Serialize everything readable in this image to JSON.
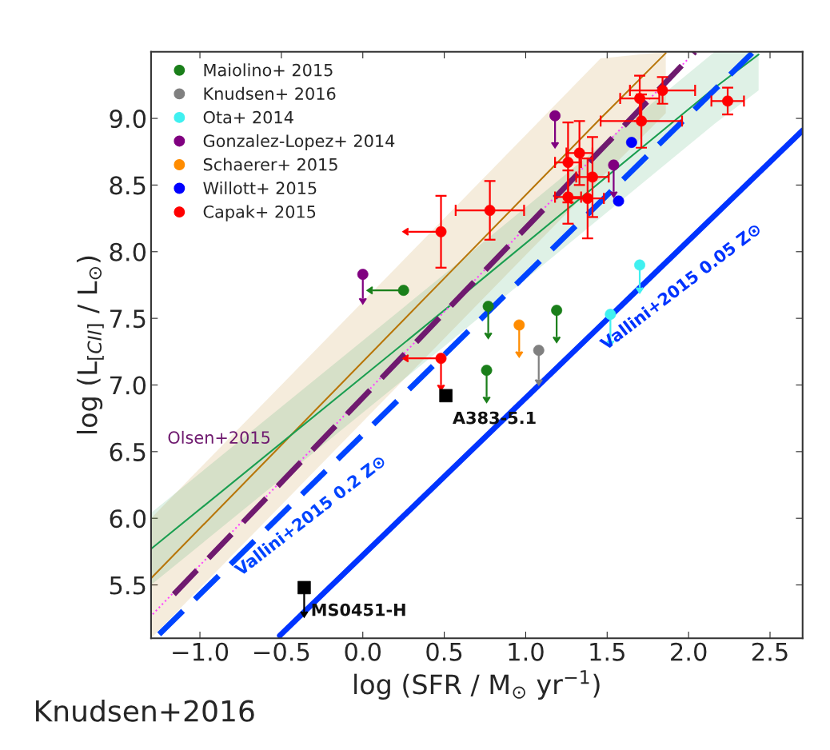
{
  "chart_data": {
    "type": "scatter",
    "xlabel": "log (SFR / M$_{⊙}$ yr$^{−1}$)",
    "ylabel": "log (L$_{[CII]}$ / L$_{⊙}$)",
    "xlim": [
      -1.3,
      2.7
    ],
    "ylim": [
      5.1,
      9.5
    ],
    "xticks": [
      {
        "value": -1.0,
        "label": "−1.0"
      },
      {
        "value": -0.5,
        "label": "−0.5"
      },
      {
        "value": 0.0,
        "label": "0.0"
      },
      {
        "value": 0.5,
        "label": "0.5"
      },
      {
        "value": 1.0,
        "label": "1.0"
      },
      {
        "value": 1.5,
        "label": "1.5"
      },
      {
        "value": 2.0,
        "label": "2.0"
      },
      {
        "value": 2.5,
        "label": "2.5"
      }
    ],
    "yticks": [
      {
        "value": 5.5,
        "label": "5.5"
      },
      {
        "value": 6.0,
        "label": "6.0"
      },
      {
        "value": 6.5,
        "label": "6.5"
      },
      {
        "value": 7.0,
        "label": "7.0"
      },
      {
        "value": 7.5,
        "label": "7.5"
      },
      {
        "value": 8.0,
        "label": "8.0"
      },
      {
        "value": 8.5,
        "label": "8.5"
      },
      {
        "value": 9.0,
        "label": "9.0"
      }
    ],
    "grid": false,
    "legend": "top left",
    "series": [
      {
        "type": "line",
        "color": "#b8760a",
        "line_style": "solid",
        "x": [
          -1.3,
          0.5,
          1.46,
          1.86
        ],
        "values": [
          5.55,
          7.8,
          9.0,
          9.49
        ],
        "lower": [
          5.1,
          7.35,
          8.55,
          9.04
        ],
        "upper": [
          6.0,
          8.25,
          9.45,
          9.5
        ]
      },
      {
        "type": "line",
        "color": "#1a9e50",
        "line_style": "solid",
        "x": [
          -1.3,
          0.5,
          2.16,
          2.43
        ],
        "values": [
          5.77,
          7.56,
          9.23,
          9.48
        ],
        "lower": [
          5.5,
          7.29,
          8.96,
          9.21
        ],
        "upper": [
          6.04,
          7.83,
          9.5,
          9.5
        ]
      },
      {
        "type": "line",
        "color": "#ff44ff",
        "line_style": "dotted",
        "x": [
          -1.29,
          2.0
        ],
        "values": [
          5.28,
          9.45
        ]
      },
      {
        "type": "line",
        "name": "Olsen+2015",
        "color": "#6f1a6f",
        "line_style": "dashed",
        "x": [
          -1.16,
          2.04
        ],
        "values": [
          5.43,
          9.5
        ]
      },
      {
        "type": "line",
        "name": "Vallini+2015 0.2 Z⊙",
        "color": "#0044ff",
        "line_style": "dashed",
        "x": [
          -1.25,
          2.39
        ],
        "values": [
          5.13,
          9.49
        ]
      },
      {
        "type": "line",
        "name": "Vallini+2015 0.05 Z⊙",
        "color": "#0033ff",
        "line_style": "solid",
        "x": [
          -0.51,
          2.7
        ],
        "values": [
          5.12,
          8.91
        ]
      },
      {
        "type": "scatter",
        "name": "Maiolino+ 2015",
        "color": "#1a7f1a",
        "marker": "circle",
        "x": [
          0.25,
          0.77,
          1.19,
          0.76
        ],
        "values": [
          7.71,
          7.59,
          7.56,
          7.11
        ],
        "errors": [
          null,
          [
            7.39,
            7.59
          ],
          [
            7.36,
            7.56
          ],
          [
            6.91,
            7.11
          ]
        ],
        "xerrors": [
          [
            0.06,
            0.25
          ],
          null,
          null,
          null
        ]
      },
      {
        "type": "scatter",
        "name": "Knudsen+ 2016",
        "color": "#808080",
        "marker": "circle",
        "x": [
          1.08
        ],
        "values": [
          7.26
        ],
        "errors": [
          [
            7.04,
            7.26
          ]
        ]
      },
      {
        "type": "scatter",
        "name": "Ota+ 2014",
        "color": "#40f0f0",
        "marker": "circle",
        "x": [
          1.7,
          1.52
        ],
        "values": [
          7.9,
          7.53
        ],
        "errors": [
          [
            7.73,
            7.9
          ],
          [
            7.33,
            7.53
          ]
        ]
      },
      {
        "type": "scatter",
        "name": "Gonzalez-Lopez+ 2014",
        "color": "#800080",
        "marker": "circle",
        "x": [
          0.0,
          1.18,
          1.54
        ],
        "values": [
          7.83,
          9.02,
          8.65
        ],
        "errors": [
          [
            7.65,
            7.83
          ],
          [
            8.82,
            9.02
          ],
          [
            8.45,
            8.65
          ]
        ]
      },
      {
        "type": "scatter",
        "name": "Schaerer+ 2015",
        "color": "#ff8c00",
        "marker": "circle",
        "x": [
          0.96
        ],
        "values": [
          7.45
        ],
        "errors": [
          [
            7.25,
            7.45
          ]
        ]
      },
      {
        "type": "scatter",
        "name": "Willott+ 2015",
        "color": "#0000ff",
        "marker": "circle",
        "x": [
          1.65,
          1.57
        ],
        "values": [
          8.82,
          8.38
        ]
      },
      {
        "type": "scatter",
        "name": "Capak+ 2015",
        "color": "#ff0000",
        "marker": "circle",
        "x": [
          0.48,
          0.48,
          0.78,
          1.7,
          1.84,
          2.24,
          1.71,
          1.33,
          1.26,
          1.41,
          1.26,
          1.38
        ],
        "values": [
          8.15,
          7.2,
          8.31,
          9.15,
          9.21,
          9.13,
          8.98,
          8.74,
          8.67,
          8.56,
          8.41,
          8.4
        ],
        "errors": [
          0.27,
          [
            7.0,
            7.2
          ],
          0.22,
          0.17,
          0.1,
          0.1,
          0.2,
          0.24,
          0.3,
          0.3,
          0.2,
          0.3
        ],
        "xerrors": [
          [
            0.28,
            0.48
          ],
          [
            0.28,
            0.48
          ],
          0.21,
          0.12,
          0.2,
          0.1,
          0.25,
          0.08,
          0.08,
          0.1,
          0.08,
          0.1
        ]
      },
      {
        "type": "scatter",
        "color": "#000000",
        "marker": "square",
        "x": [
          0.51,
          -0.36
        ],
        "values": [
          6.92,
          5.48
        ],
        "errors": [
          null,
          [
            5.3,
            5.48
          ]
        ]
      }
    ],
    "annotations": [
      {
        "text": "A383-5.1",
        "x": 0.51,
        "y": 6.92
      },
      {
        "text": "MS0451-H",
        "x": -0.36,
        "y": 5.48
      },
      "Knudsen+2016"
    ]
  }
}
